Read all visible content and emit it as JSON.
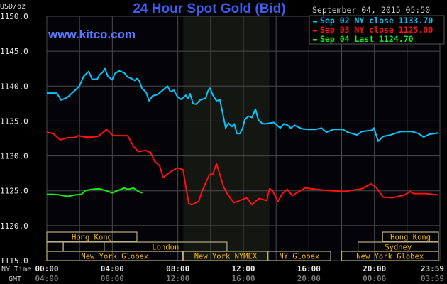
{
  "header": {
    "title": "24 Hour Spot Gold (Bid)",
    "website": "www.kitco.com",
    "timestamp": "September 04, 2015 05:50"
  },
  "colors": {
    "background": "#000000",
    "plot_background": "#040308",
    "nymex_shade": "#141612",
    "grid": "#4a4a4a",
    "title": "#3f5cf0",
    "website": "#5a78ff",
    "session_text": "#f5b800",
    "session_border": "#b8ae82"
  },
  "chart_data": {
    "type": "line",
    "title": "24 Hour Spot Gold (Bid)",
    "ylabel": "USD/oz",
    "ylim": [
      1115,
      1150
    ],
    "yticks": [
      "1150.0",
      "1145.0",
      "1140.0",
      "1135.0",
      "1130.0",
      "1125.0",
      "1120.0",
      "1115.0"
    ],
    "xlim_hours": [
      0,
      24
    ],
    "xlabel_rows": [
      {
        "label": "NY Time",
        "ticks": [
          "00:00",
          "04:00",
          "08:00",
          "12:00",
          "16:00",
          "20:00",
          "23:59"
        ]
      },
      {
        "label": "GMT",
        "ticks": [
          "04:00",
          "08:00",
          "12:00",
          "16:00",
          "20:00",
          "00:00",
          "03:59"
        ]
      }
    ],
    "grid": true,
    "legend_position": "top-right",
    "shaded_period_hours": [
      8.33,
      13.58
    ],
    "series": [
      {
        "name": "Sep 02 NY close 1133.70",
        "color": "#00c8ff",
        "points": [
          [
            0,
            1139.0
          ],
          [
            0.61,
            1139.0
          ],
          [
            0.87,
            1138.0
          ],
          [
            1.26,
            1138.4
          ],
          [
            1.82,
            1139.6
          ],
          [
            1.99,
            1140.0
          ],
          [
            2.25,
            1141.4
          ],
          [
            2.56,
            1142.1
          ],
          [
            2.77,
            1141.0
          ],
          [
            3.08,
            1141.0
          ],
          [
            3.21,
            1141.6
          ],
          [
            3.42,
            1142.0
          ],
          [
            3.55,
            1142.5
          ],
          [
            3.73,
            1141.4
          ],
          [
            3.99,
            1140.9
          ],
          [
            4.16,
            1141.8
          ],
          [
            4.42,
            1142.2
          ],
          [
            4.72,
            1141.9
          ],
          [
            4.94,
            1141.3
          ],
          [
            5.16,
            1141.1
          ],
          [
            5.37,
            1140.8
          ],
          [
            5.5,
            1141.1
          ],
          [
            5.63,
            1140.8
          ],
          [
            5.81,
            1139.7
          ],
          [
            6.07,
            1139.1
          ],
          [
            6.24,
            1137.9
          ],
          [
            6.46,
            1138.6
          ],
          [
            6.76,
            1138.8
          ],
          [
            7.02,
            1139.3
          ],
          [
            7.37,
            1140.0
          ],
          [
            7.54,
            1139.2
          ],
          [
            7.76,
            1139.4
          ],
          [
            7.97,
            1138.5
          ],
          [
            8.19,
            1138.1
          ],
          [
            8.49,
            1138.7
          ],
          [
            8.62,
            1138.2
          ],
          [
            8.75,
            1138.9
          ],
          [
            8.93,
            1137.5
          ],
          [
            9.1,
            1137.4
          ],
          [
            9.36,
            1138.0
          ],
          [
            9.71,
            1138.3
          ],
          [
            9.84,
            1139.3
          ],
          [
            9.97,
            1139.7
          ],
          [
            10.14,
            1138.7
          ],
          [
            10.36,
            1137.9
          ],
          [
            10.57,
            1138.0
          ],
          [
            10.75,
            1136.0
          ],
          [
            10.92,
            1134.0
          ],
          [
            11.09,
            1134.7
          ],
          [
            11.31,
            1134.2
          ],
          [
            11.44,
            1134.6
          ],
          [
            11.61,
            1133.2
          ],
          [
            11.79,
            1133.2
          ],
          [
            11.96,
            1134.0
          ],
          [
            12.09,
            1135.2
          ],
          [
            12.31,
            1135.7
          ],
          [
            12.52,
            1135.5
          ],
          [
            12.74,
            1136.7
          ],
          [
            12.91,
            1135.2
          ],
          [
            13.17,
            1134.6
          ],
          [
            13.39,
            1134.6
          ],
          [
            13.6,
            1134.7
          ],
          [
            13.86,
            1134.8
          ],
          [
            14.25,
            1134.0
          ],
          [
            14.47,
            1134.6
          ],
          [
            14.69,
            1134.4
          ],
          [
            14.9,
            1134.0
          ],
          [
            15.12,
            1134.4
          ],
          [
            15.55,
            1133.9
          ],
          [
            15.9,
            1133.8
          ],
          [
            16.42,
            1133.8
          ],
          [
            16.77,
            1134.0
          ],
          [
            17.07,
            1133.4
          ],
          [
            17.5,
            1133.8
          ],
          [
            18.07,
            1133.8
          ],
          [
            18.37,
            1133.4
          ],
          [
            18.93,
            1133.0
          ],
          [
            19.24,
            1133.5
          ],
          [
            19.89,
            1133.7
          ],
          [
            19.97,
            1134.0
          ],
          [
            20.23,
            1132.1
          ],
          [
            20.54,
            1132.8
          ],
          [
            20.97,
            1133.0
          ],
          [
            21.62,
            1133.5
          ],
          [
            22.27,
            1133.5
          ],
          [
            22.7,
            1133.2
          ],
          [
            23.01,
            1132.7
          ],
          [
            23.35,
            1133.1
          ],
          [
            23.92,
            1133.3
          ]
        ]
      },
      {
        "name": "Sep 03 NY close 1125.00",
        "color": "#ff1010",
        "points": [
          [
            0,
            1133.4
          ],
          [
            0.39,
            1133.2
          ],
          [
            0.82,
            1132.3
          ],
          [
            1.26,
            1132.6
          ],
          [
            1.69,
            1132.6
          ],
          [
            1.91,
            1132.9
          ],
          [
            2.34,
            1132.7
          ],
          [
            2.77,
            1132.7
          ],
          [
            3.12,
            1132.8
          ],
          [
            3.42,
            1133.3
          ],
          [
            3.64,
            1133.8
          ],
          [
            3.86,
            1133.3
          ],
          [
            4.07,
            1132.9
          ],
          [
            4.51,
            1132.9
          ],
          [
            4.94,
            1132.9
          ],
          [
            5.29,
            1131.4
          ],
          [
            5.59,
            1130.6
          ],
          [
            6.02,
            1130.8
          ],
          [
            6.33,
            1130.5
          ],
          [
            6.59,
            1129.2
          ],
          [
            6.89,
            1128.6
          ],
          [
            7.11,
            1126.9
          ],
          [
            7.54,
            1127.7
          ],
          [
            7.97,
            1128.3
          ],
          [
            8.32,
            1128.0
          ],
          [
            8.49,
            1125.6
          ],
          [
            8.67,
            1123.2
          ],
          [
            8.84,
            1123.0
          ],
          [
            9.27,
            1123.5
          ],
          [
            9.49,
            1125.0
          ],
          [
            9.92,
            1127.3
          ],
          [
            10.14,
            1127.4
          ],
          [
            10.36,
            1128.9
          ],
          [
            10.57,
            1127.3
          ],
          [
            10.79,
            1125.6
          ],
          [
            11.01,
            1124.6
          ],
          [
            11.22,
            1123.9
          ],
          [
            11.44,
            1123.3
          ],
          [
            11.87,
            1123.7
          ],
          [
            12.22,
            1124.0
          ],
          [
            12.52,
            1123.0
          ],
          [
            12.95,
            1123.9
          ],
          [
            13.43,
            1123.6
          ],
          [
            13.6,
            1125.3
          ],
          [
            13.78,
            1125.0
          ],
          [
            14.12,
            1123.5
          ],
          [
            14.38,
            1124.6
          ],
          [
            14.69,
            1125.2
          ],
          [
            14.99,
            1124.3
          ],
          [
            15.25,
            1124.7
          ],
          [
            15.77,
            1125.4
          ],
          [
            16.85,
            1125.1
          ],
          [
            18.15,
            1124.9
          ],
          [
            19.24,
            1125.3
          ],
          [
            19.8,
            1126.0
          ],
          [
            20.1,
            1125.5
          ],
          [
            20.54,
            1124.1
          ],
          [
            21.1,
            1124.0
          ],
          [
            21.84,
            1124.4
          ],
          [
            22.18,
            1124.9
          ],
          [
            22.4,
            1124.6
          ],
          [
            23.14,
            1124.6
          ],
          [
            23.92,
            1124.4
          ]
        ]
      },
      {
        "name": "Sep 04 Last 1124.70",
        "color": "#10f010",
        "points": [
          [
            0,
            1124.5
          ],
          [
            0.39,
            1124.5
          ],
          [
            0.82,
            1124.4
          ],
          [
            1.26,
            1124.2
          ],
          [
            1.69,
            1124.4
          ],
          [
            2.12,
            1124.5
          ],
          [
            2.34,
            1125.0
          ],
          [
            2.69,
            1125.2
          ],
          [
            3.21,
            1125.3
          ],
          [
            3.64,
            1125.0
          ],
          [
            3.99,
            1124.7
          ],
          [
            4.29,
            1125.0
          ],
          [
            4.72,
            1125.4
          ],
          [
            4.94,
            1125.2
          ],
          [
            5.29,
            1125.4
          ],
          [
            5.59,
            1124.9
          ],
          [
            5.83,
            1124.7
          ]
        ]
      }
    ],
    "sessions": [
      {
        "label": "Hong Kong",
        "row": 1,
        "start": 0,
        "end": 5.5
      },
      {
        "label": "Hong Kong",
        "row": 1,
        "end": 24,
        "start": 20.5
      },
      {
        "label": "",
        "row": 2,
        "start": 0,
        "end": 1
      },
      {
        "label": "",
        "row": 2,
        "start": 1,
        "end": 3.5
      },
      {
        "label": "London",
        "row": 2,
        "start": 3.5,
        "end": 11
      },
      {
        "label": "Sydney",
        "row": 2,
        "start": 19,
        "end": 24
      },
      {
        "label": "New York Globex",
        "row": 3,
        "start": 0,
        "end": 8.3
      },
      {
        "label": "New York NYMEX",
        "row": 3,
        "start": 8.33,
        "end": 13.5
      },
      {
        "label": "NY Globex",
        "row": 3,
        "start": 13.5,
        "end": 17.33
      },
      {
        "label": "New York Globex",
        "row": 3,
        "start": 18,
        "end": 24
      }
    ]
  }
}
